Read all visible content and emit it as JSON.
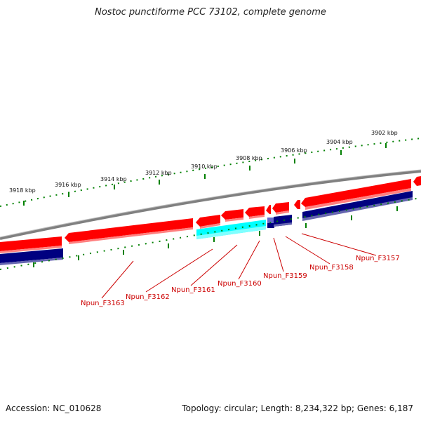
{
  "title": "Nostoc punctiforme PCC 73102, complete genome",
  "footer": {
    "accession_label": "Accession: NC_010628",
    "summary_label": "Topology: circular; Length: 8,234,322 bp; Genes: 6,187"
  },
  "kbp_labels": [
    "3918 kbp",
    "3916 kbp",
    "3914 kbp",
    "3912 kbp",
    "3910 kbp",
    "3908 kbp",
    "3906 kbp",
    "3904 kbp",
    "3902 kbp"
  ],
  "gene_labels": [
    "Npun_F3163",
    "Npun_F3162",
    "Npun_F3161",
    "Npun_F3160",
    "Npun_F3159",
    "Npun_F3158",
    "Npun_F3157"
  ],
  "colors": {
    "forward_gene": "#ff0000",
    "forward_shadow": "#ff8080",
    "cds_track": "#000080",
    "rna_gene": "#00ffff",
    "backbone": "#808080",
    "tick_mark": "#008000",
    "label": "#cc0000"
  }
}
